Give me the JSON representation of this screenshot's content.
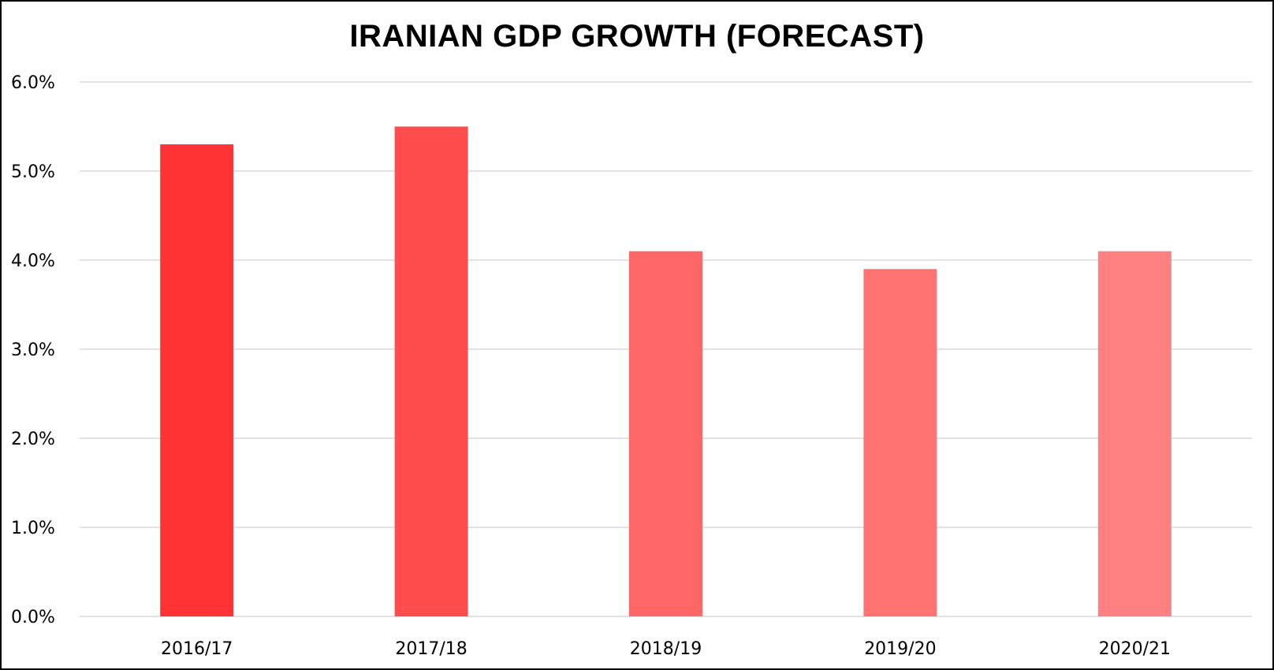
{
  "chart_data": {
    "type": "bar",
    "title": "IRANIAN GDP GROWTH (FORECAST)",
    "categories": [
      "2016/17",
      "2017/18",
      "2018/19",
      "2019/20",
      "2020/21"
    ],
    "values": [
      5.3,
      5.5,
      4.1,
      3.9,
      4.1
    ],
    "value_unit": "%",
    "ylim": [
      0,
      6
    ],
    "yticks": [
      "0.0%",
      "1.0%",
      "2.0%",
      "3.0%",
      "4.0%",
      "5.0%",
      "6.0%"
    ],
    "grid": true,
    "legend": "none",
    "bar_colors": [
      "#ff3333",
      "#ff4d4d",
      "#ff6666",
      "#ff7373",
      "#ff8080"
    ],
    "grid_color": "#d9d9d9"
  }
}
